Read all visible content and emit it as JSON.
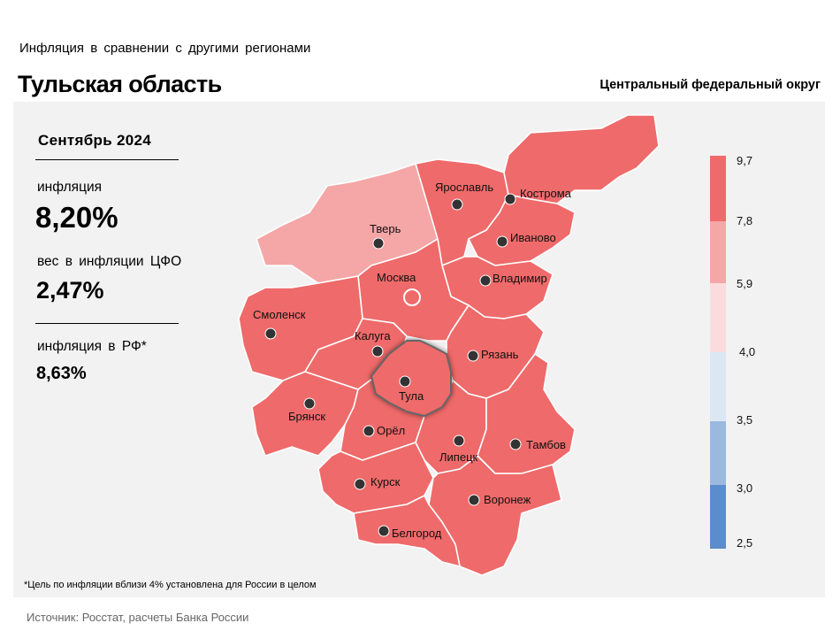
{
  "header": {
    "subtitle": "Инфляция в сравнении с другими регионами",
    "title": "Тульская область",
    "district": "Центральный федеральный округ"
  },
  "info": {
    "month": "Сентябрь 2024",
    "inflation_label": "инфляция",
    "inflation_value": "8,20%",
    "weight_label": "вес в инфляции ЦФО",
    "weight_value": "2,47%",
    "rf_label": "инфляция в РФ*",
    "rf_value": "8,63%"
  },
  "footnote": "*Цель по инфляции вблизи 4% установлена для России в целом",
  "source": "Источник: Росстат, расчеты Банка России",
  "legend": {
    "ticks": [
      "9,7",
      "7,8",
      "5,9",
      "4,0",
      "3,5",
      "3,0",
      "2,5"
    ],
    "colors": [
      "#ef6a6a",
      "#f5a6a6",
      "#fbdcde",
      "#dce7f4",
      "#9bb8df",
      "#5b8ccc"
    ]
  },
  "map": {
    "highlight_color": "#ef6a6a",
    "light_color": "#f5a6a6",
    "cities": {
      "tver": "Тверь",
      "yaroslavl": "Ярославль",
      "kostroma": "Кострома",
      "ivanovo": "Иваново",
      "vladimir": "Владимир",
      "moscow": "Москва",
      "smolensk": "Смоленск",
      "kaluga": "Калуга",
      "ryazan": "Рязань",
      "tula": "Тула",
      "bryansk": "Брянск",
      "orel": "Орёл",
      "lipetsk": "Липецк",
      "tambov": "Тамбов",
      "kursk": "Курск",
      "voronezh": "Воронеж",
      "belgorod": "Белгород"
    }
  }
}
